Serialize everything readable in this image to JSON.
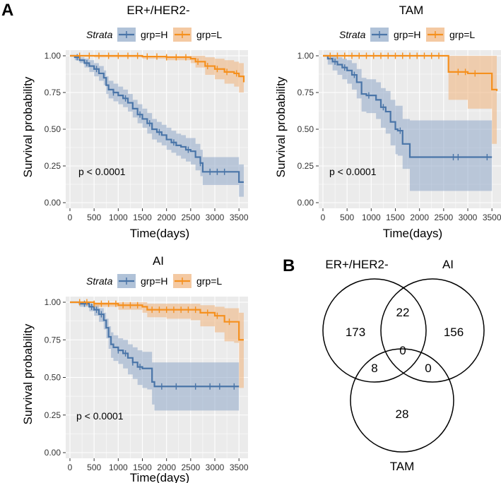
{
  "panel_letters": {
    "a": "A",
    "b": "B"
  },
  "colors": {
    "grp_H": "#4a75a8",
    "grp_L": "#f5901e",
    "ci_H": "#8fa8c8",
    "ci_L": "#f0b27a",
    "panel_bg": "#ebebeb",
    "grid": "#ffffff"
  },
  "chart_data": [
    {
      "type": "line",
      "title": "ER+/HER2-",
      "legend_title": "Strata",
      "legend_items": [
        "grp=H",
        "grp=L"
      ],
      "xlabel": "Time(days)",
      "ylabel": "Survival probability",
      "xlim": [
        0,
        3600
      ],
      "ylim": [
        0,
        1
      ],
      "xticks": [
        "0",
        "500",
        "1000",
        "1500",
        "2000",
        "2500",
        "3000",
        "3500"
      ],
      "yticks": [
        "0.00",
        "0.25",
        "0.50",
        "0.75",
        "1.00"
      ],
      "pvalue": "p < 0.0001",
      "series": [
        {
          "name": "grp=H",
          "x": [
            0,
            100,
            200,
            300,
            400,
            500,
            600,
            700,
            750,
            800,
            900,
            1000,
            1100,
            1200,
            1300,
            1400,
            1500,
            1600,
            1700,
            1800,
            1900,
            2000,
            2100,
            2200,
            2300,
            2400,
            2500,
            2600,
            2700,
            2750,
            2800,
            3000,
            3200,
            3400,
            3500,
            3600
          ],
          "y": [
            1.0,
            0.99,
            0.97,
            0.95,
            0.93,
            0.91,
            0.88,
            0.85,
            0.8,
            0.77,
            0.75,
            0.73,
            0.71,
            0.68,
            0.64,
            0.6,
            0.57,
            0.54,
            0.5,
            0.48,
            0.46,
            0.43,
            0.41,
            0.39,
            0.38,
            0.36,
            0.35,
            0.31,
            0.27,
            0.21,
            0.21,
            0.21,
            0.21,
            0.21,
            0.14,
            0.14
          ],
          "ci_upper": [
            1.0,
            1.0,
            0.99,
            0.98,
            0.97,
            0.95,
            0.93,
            0.9,
            0.86,
            0.83,
            0.81,
            0.79,
            0.77,
            0.74,
            0.7,
            0.67,
            0.64,
            0.61,
            0.57,
            0.55,
            0.53,
            0.51,
            0.49,
            0.47,
            0.46,
            0.44,
            0.44,
            0.4,
            0.36,
            0.31,
            0.31,
            0.31,
            0.31,
            0.31,
            0.26,
            0.26
          ],
          "ci_lower": [
            1.0,
            0.97,
            0.95,
            0.92,
            0.89,
            0.86,
            0.83,
            0.8,
            0.74,
            0.71,
            0.69,
            0.67,
            0.65,
            0.62,
            0.58,
            0.54,
            0.51,
            0.47,
            0.43,
            0.41,
            0.39,
            0.36,
            0.34,
            0.32,
            0.3,
            0.28,
            0.26,
            0.22,
            0.18,
            0.12,
            0.12,
            0.12,
            0.12,
            0.12,
            0.04,
            0.04
          ],
          "censor_x": [
            150,
            350,
            550,
            900,
            1150,
            1450,
            1650,
            1850,
            2150,
            2450,
            2700,
            2900,
            3050,
            3200
          ]
        },
        {
          "name": "grp=L",
          "x": [
            0,
            500,
            1000,
            1500,
            2000,
            2500,
            2600,
            2800,
            3000,
            3200,
            3400,
            3500,
            3600
          ],
          "y": [
            1.0,
            1.0,
            1.0,
            0.995,
            0.99,
            0.98,
            0.96,
            0.93,
            0.91,
            0.89,
            0.88,
            0.86,
            0.82
          ],
          "ci_upper": [
            1.0,
            1.0,
            1.0,
            1.0,
            1.0,
            1.0,
            1.0,
            0.99,
            0.98,
            0.97,
            0.96,
            0.95,
            0.93
          ],
          "ci_lower": [
            1.0,
            0.99,
            0.99,
            0.98,
            0.97,
            0.95,
            0.92,
            0.87,
            0.84,
            0.81,
            0.79,
            0.75,
            0.67
          ],
          "censor_x": [
            200,
            400,
            600,
            800,
            1000,
            1200,
            1400,
            1600,
            1800,
            2000,
            2200,
            2400,
            2650,
            2850,
            3050,
            3250,
            3450
          ]
        }
      ]
    },
    {
      "type": "line",
      "title": "TAM",
      "legend_title": "Strata",
      "legend_items": [
        "grp=H",
        "grp=L"
      ],
      "xlabel": "Time(days)",
      "ylabel": "Survival probability",
      "xlim": [
        0,
        3600
      ],
      "ylim": [
        0,
        1
      ],
      "xticks": [
        "0",
        "500",
        "1000",
        "1500",
        "2000",
        "2500",
        "3000",
        "3500"
      ],
      "yticks": [
        "0.00",
        "0.25",
        "0.50",
        "0.75",
        "1.00"
      ],
      "pvalue": "p < 0.0001",
      "series": [
        {
          "name": "grp=H",
          "x": [
            0,
            100,
            200,
            300,
            400,
            500,
            600,
            700,
            800,
            900,
            1000,
            1100,
            1200,
            1300,
            1400,
            1500,
            1550,
            1650,
            1800,
            2000,
            2500,
            3000,
            3500
          ],
          "y": [
            1.0,
            0.98,
            0.96,
            0.94,
            0.92,
            0.9,
            0.87,
            0.82,
            0.74,
            0.73,
            0.73,
            0.7,
            0.65,
            0.62,
            0.55,
            0.5,
            0.49,
            0.4,
            0.31,
            0.31,
            0.31,
            0.31,
            0.31
          ],
          "ci_upper": [
            1.0,
            1.0,
            1.0,
            0.99,
            0.98,
            0.97,
            0.95,
            0.91,
            0.85,
            0.84,
            0.84,
            0.82,
            0.78,
            0.76,
            0.7,
            0.66,
            0.66,
            0.57,
            0.56,
            0.56,
            0.56,
            0.56,
            0.56
          ],
          "ci_lower": [
            1.0,
            0.94,
            0.9,
            0.87,
            0.84,
            0.81,
            0.77,
            0.71,
            0.62,
            0.61,
            0.61,
            0.57,
            0.51,
            0.47,
            0.39,
            0.33,
            0.32,
            0.23,
            0.08,
            0.08,
            0.08,
            0.08,
            0.08
          ],
          "censor_x": [
            250,
            450,
            650,
            950,
            1250,
            1600,
            2700,
            2800,
            3400
          ]
        },
        {
          "name": "grp=L",
          "x": [
            0,
            500,
            1000,
            1500,
            2000,
            2500,
            2600,
            3000,
            3500,
            3600
          ],
          "y": [
            1.0,
            1.0,
            1.0,
            1.0,
            1.0,
            1.0,
            0.89,
            0.88,
            0.77,
            0.76
          ],
          "ci_upper": [
            1.0,
            1.0,
            1.0,
            1.0,
            1.0,
            1.0,
            1.0,
            1.0,
            1.0,
            1.0
          ],
          "ci_lower": [
            1.0,
            1.0,
            1.0,
            1.0,
            1.0,
            1.0,
            0.7,
            0.64,
            0.4,
            0.38
          ],
          "censor_x": [
            150,
            300,
            450,
            600,
            750,
            900,
            1050,
            1200,
            1350,
            1500,
            1650,
            1800,
            1950,
            2100,
            2250,
            2400,
            2800,
            2950,
            3150
          ]
        }
      ]
    },
    {
      "type": "line",
      "title": "AI",
      "legend_title": "Strata",
      "legend_items": [
        "grp=H",
        "grp=L"
      ],
      "xlabel": "Time(days)",
      "ylabel": "Survival probability",
      "xlim": [
        0,
        3600
      ],
      "ylim": [
        0,
        1
      ],
      "xticks": [
        "0",
        "500",
        "1000",
        "1500",
        "2000",
        "2500",
        "3000",
        "3500"
      ],
      "yticks": [
        "0.00",
        "0.25",
        "0.50",
        "0.75",
        "1.00"
      ],
      "pvalue": "p < 0.0001",
      "series": [
        {
          "name": "grp=H",
          "x": [
            0,
            200,
            400,
            500,
            600,
            700,
            750,
            800,
            850,
            900,
            1000,
            1100,
            1200,
            1300,
            1400,
            1500,
            1600,
            1700,
            1750,
            2000,
            2500,
            3000,
            3500
          ],
          "y": [
            1.0,
            0.99,
            0.97,
            0.95,
            0.92,
            0.88,
            0.83,
            0.77,
            0.72,
            0.7,
            0.68,
            0.66,
            0.63,
            0.6,
            0.57,
            0.56,
            0.56,
            0.47,
            0.44,
            0.44,
            0.44,
            0.44,
            0.44
          ],
          "ci_upper": [
            1.0,
            1.0,
            0.99,
            0.98,
            0.96,
            0.93,
            0.89,
            0.84,
            0.8,
            0.78,
            0.76,
            0.75,
            0.72,
            0.7,
            0.68,
            0.67,
            0.67,
            0.6,
            0.6,
            0.6,
            0.6,
            0.6,
            0.6
          ],
          "ci_lower": [
            1.0,
            0.97,
            0.94,
            0.91,
            0.87,
            0.82,
            0.76,
            0.69,
            0.63,
            0.61,
            0.59,
            0.56,
            0.52,
            0.49,
            0.45,
            0.43,
            0.42,
            0.32,
            0.28,
            0.28,
            0.28,
            0.28,
            0.28
          ],
          "censor_x": [
            300,
            450,
            550,
            650,
            1000,
            1150,
            1300,
            1450,
            1900,
            2200,
            2600,
            2900,
            3100,
            3400
          ]
        },
        {
          "name": "grp=L",
          "x": [
            0,
            500,
            1000,
            1500,
            1600,
            2000,
            2500,
            2700,
            3000,
            3200,
            3400,
            3500,
            3600
          ],
          "y": [
            1.0,
            0.99,
            0.98,
            0.97,
            0.95,
            0.95,
            0.95,
            0.93,
            0.91,
            0.87,
            0.87,
            0.75,
            0.75
          ],
          "ci_upper": [
            1.0,
            1.0,
            1.0,
            1.0,
            0.99,
            0.99,
            0.99,
            0.98,
            0.97,
            0.96,
            0.96,
            0.93,
            0.93
          ],
          "ci_lower": [
            1.0,
            0.97,
            0.95,
            0.93,
            0.9,
            0.89,
            0.88,
            0.84,
            0.8,
            0.74,
            0.73,
            0.43,
            0.4
          ],
          "censor_x": [
            200,
            350,
            500,
            650,
            800,
            950,
            1100,
            1250,
            1400,
            1700,
            1850,
            2000,
            2150,
            2300,
            2450,
            2600,
            2850,
            3050,
            3300
          ]
        }
      ]
    }
  ],
  "venn": {
    "set_labels": {
      "er": "ER+/HER2-",
      "ai": "AI",
      "tam": "TAM"
    },
    "counts": {
      "er_only": "173",
      "er_ai": "22",
      "ai_only": "156",
      "all": "0",
      "er_tam": "8",
      "ai_tam": "0",
      "tam_only": "28"
    }
  }
}
